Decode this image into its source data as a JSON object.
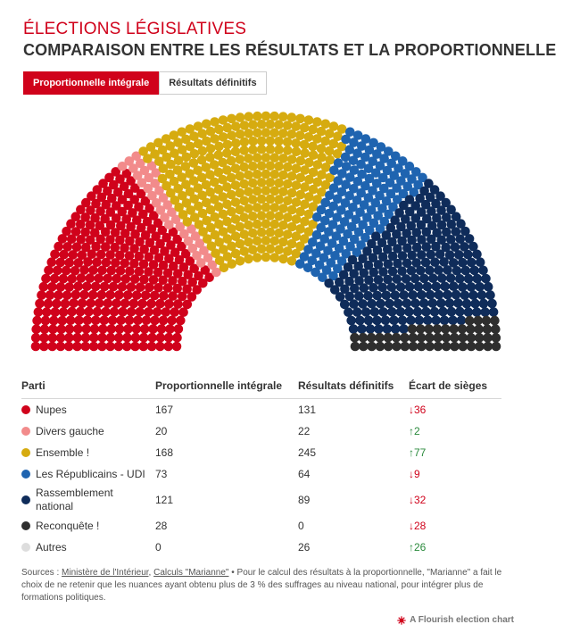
{
  "header": {
    "kicker": "ÉLECTIONS LÉGISLATIVES",
    "title": "COMPARAISON ENTRE LES RÉSULTATS ET LA PROPORTIONNELLE"
  },
  "tabs": [
    {
      "label": "Proportionnelle intégrale",
      "active": true
    },
    {
      "label": "Résultats définitifs",
      "active": false
    }
  ],
  "table": {
    "headers": [
      "Parti",
      "Proportionnelle intégrale",
      "Résultats définitifs",
      "Écart de sièges"
    ],
    "rows": [
      {
        "party": "Nupes",
        "proportional": "167",
        "final": "131",
        "diff": "36",
        "dir": "down"
      },
      {
        "party": "Divers gauche",
        "proportional": "20",
        "final": "22",
        "diff": "2",
        "dir": "up"
      },
      {
        "party": "Ensemble !",
        "proportional": "168",
        "final": "245",
        "diff": "77",
        "dir": "up"
      },
      {
        "party": "Les Républicains - UDI",
        "proportional": "73",
        "final": "64",
        "diff": "9",
        "dir": "down"
      },
      {
        "party": "Rassemblement national",
        "proportional": "121",
        "final": "89",
        "diff": "32",
        "dir": "down"
      },
      {
        "party": "Reconquête !",
        "proportional": "28",
        "final": "0",
        "diff": "28",
        "dir": "down"
      },
      {
        "party": "Autres",
        "proportional": "0",
        "final": "26",
        "diff": "26",
        "dir": "up"
      }
    ]
  },
  "sources": {
    "prefix": "Sources : ",
    "link1": "Ministère de l'Intérieur",
    "sep": ", ",
    "link2": "Calculs \"Marianne\"",
    "text": " • Pour le calcul des résultats à la proportionnelle, \"Marianne\" a fait le choix de ne retenir que les nuances ayant obtenu plus de 3 % des suffrages au niveau national, pour intégrer plus de formations politiques."
  },
  "footer": {
    "label": "A Flourish election chart",
    "icon": "flourish-icon"
  },
  "chart_data": {
    "type": "parliament",
    "view": "Proportionnelle intégrale",
    "series": [
      {
        "name": "Nupes",
        "seats": 167,
        "color": "#d0021b"
      },
      {
        "name": "Divers gauche",
        "seats": 20,
        "color": "#f28b8b"
      },
      {
        "name": "Ensemble !",
        "seats": 168,
        "color": "#d6ab10"
      },
      {
        "name": "Les Républicains - UDI",
        "seats": 73,
        "color": "#1f64b0"
      },
      {
        "name": "Rassemblement national",
        "seats": 121,
        "color": "#0f2c5a"
      },
      {
        "name": "Reconquête !",
        "seats": 28,
        "color": "#2e2e2e"
      },
      {
        "name": "Autres",
        "seats": 0,
        "color": "#dddddd"
      }
    ]
  }
}
